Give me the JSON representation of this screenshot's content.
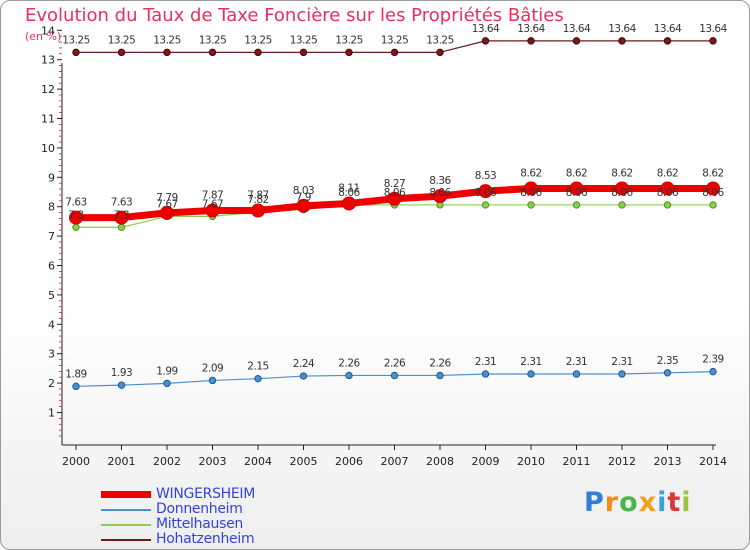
{
  "title": "Evolution du Taux de Taxe Foncière sur les Propriétés Bâties",
  "subtitle": "(en %)",
  "logo": {
    "letters": [
      "P",
      "r",
      "o",
      "x",
      "i",
      "t",
      "i"
    ],
    "colors": [
      "#2f7fd6",
      "#f08a1c",
      "#48b648",
      "#f0a020",
      "#3a9ee0",
      "#d93838",
      "#9ac43a"
    ]
  },
  "chart_data": {
    "type": "line",
    "x": [
      "2000",
      "2001",
      "2002",
      "2003",
      "2004",
      "2005",
      "2006",
      "2007",
      "2008",
      "2009",
      "2010",
      "2011",
      "2012",
      "2013",
      "2014"
    ],
    "yticks": [
      "1",
      "2",
      "3",
      "4",
      "5",
      "6",
      "7",
      "8",
      "9",
      "10",
      "11",
      "12",
      "13",
      "14"
    ],
    "ylim": [
      0.5,
      14
    ],
    "grid": false,
    "legend_position": "bottom-left",
    "series": [
      {
        "name": "WINGERSHEIM",
        "color": "#ee0000",
        "values": [
          7.63,
          7.63,
          7.79,
          7.87,
          7.87,
          8.03,
          8.11,
          8.27,
          8.36,
          8.53,
          8.62,
          8.62,
          8.62,
          8.62,
          8.62
        ],
        "labels": [
          "7.63",
          "7.63",
          "7.79",
          "7.87",
          "7.87",
          "8.03",
          "8.11",
          "8.27",
          "8.36",
          "8.53",
          "8.62",
          "8.62",
          "8.62",
          "8.62",
          "8.62"
        ]
      },
      {
        "name": "Donnenheim",
        "color": "#4a8fd0",
        "values": [
          1.89,
          1.93,
          1.99,
          2.09,
          2.15,
          2.24,
          2.26,
          2.26,
          2.26,
          2.31,
          2.31,
          2.31,
          2.31,
          2.35,
          2.39
        ],
        "labels": [
          "1.89",
          "1.93",
          "1.99",
          "2.09",
          "2.15",
          "2.24",
          "2.26",
          "2.26",
          "2.26",
          "2.31",
          "2.31",
          "2.31",
          "2.31",
          "2.35",
          "2.39"
        ]
      },
      {
        "name": "Mittelhausen",
        "color": "#88d048",
        "values": [
          7.3,
          7.3,
          7.67,
          7.67,
          7.82,
          7.9,
          8.06,
          8.06,
          8.06,
          8.06,
          8.06,
          8.06,
          8.06,
          8.06,
          8.06
        ],
        "labels": [
          "7.3",
          "7.3",
          "7.67",
          "7.67",
          "7.82",
          "7.9",
          "8.06",
          "8.06",
          "8.06",
          "8.06",
          "8.06",
          "8.06",
          "8.06",
          "8.06",
          "8.06"
        ]
      },
      {
        "name": "Hohatzenheim",
        "color": "#6a1a1a",
        "values": [
          13.25,
          13.25,
          13.25,
          13.25,
          13.25,
          13.25,
          13.25,
          13.25,
          13.25,
          13.64,
          13.64,
          13.64,
          13.64,
          13.64,
          13.64
        ],
        "labels": [
          "13.25",
          "13.25",
          "13.25",
          "13.25",
          "13.25",
          "13.25",
          "13.25",
          "13.25",
          "13.25",
          "13.64",
          "13.64",
          "13.64",
          "13.64",
          "13.64",
          "13.64"
        ]
      }
    ]
  }
}
